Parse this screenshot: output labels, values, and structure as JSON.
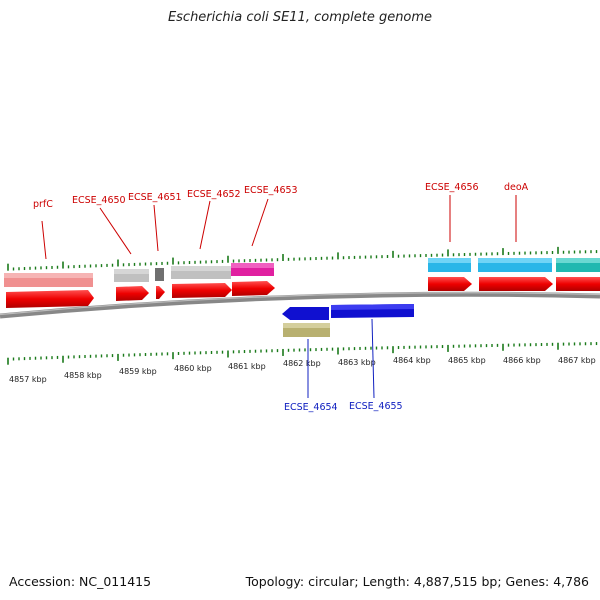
{
  "title": "Escherichia coli SE11, complete genome",
  "footer": {
    "accession": "Accession: NC_011415",
    "summary": "Topology: circular; Length: 4,887,515 bp; Genes: 4,786"
  },
  "colors": {
    "cds": "#e60000",
    "backbone": "#808080",
    "tick": "#1a7a1a",
    "label_top": "#cc0000",
    "label_bottom": "#1020c0",
    "gene_pink": "#f09090",
    "gene_gray": "#c0c0c0",
    "gene_dark": "#707070",
    "gene_magenta": "#e020a0",
    "gene_cyan": "#29b6e8",
    "gene_teal": "#20b8b0",
    "gene_blue": "#1010d0",
    "gene_olive": "#b8b070"
  },
  "kbp_labels": [
    "4857 kbp",
    "4858 kbp",
    "4859 kbp",
    "4860 kbp",
    "4861 kbp",
    "4862 kbp",
    "4863 kbp",
    "4864 kbp",
    "4865 kbp",
    "4866 kbp",
    "4867 kbp"
  ],
  "genes_top": [
    {
      "name": "prfC",
      "color": "gene_pink"
    },
    {
      "name": "ECSE_4650",
      "color": "gene_gray"
    },
    {
      "name": "ECSE_4651",
      "color": "gene_dark"
    },
    {
      "name": "ECSE_4652",
      "color": "gene_gray"
    },
    {
      "name": "ECSE_4653",
      "color": "gene_magenta"
    },
    {
      "name": "ECSE_4656",
      "color": "gene_cyan"
    },
    {
      "name": "deoA",
      "color": "gene_cyan"
    }
  ],
  "genes_bottom": [
    {
      "name": "ECSE_4654",
      "color": "gene_olive"
    },
    {
      "name": "ECSE_4655",
      "color": "gene_blue"
    }
  ]
}
